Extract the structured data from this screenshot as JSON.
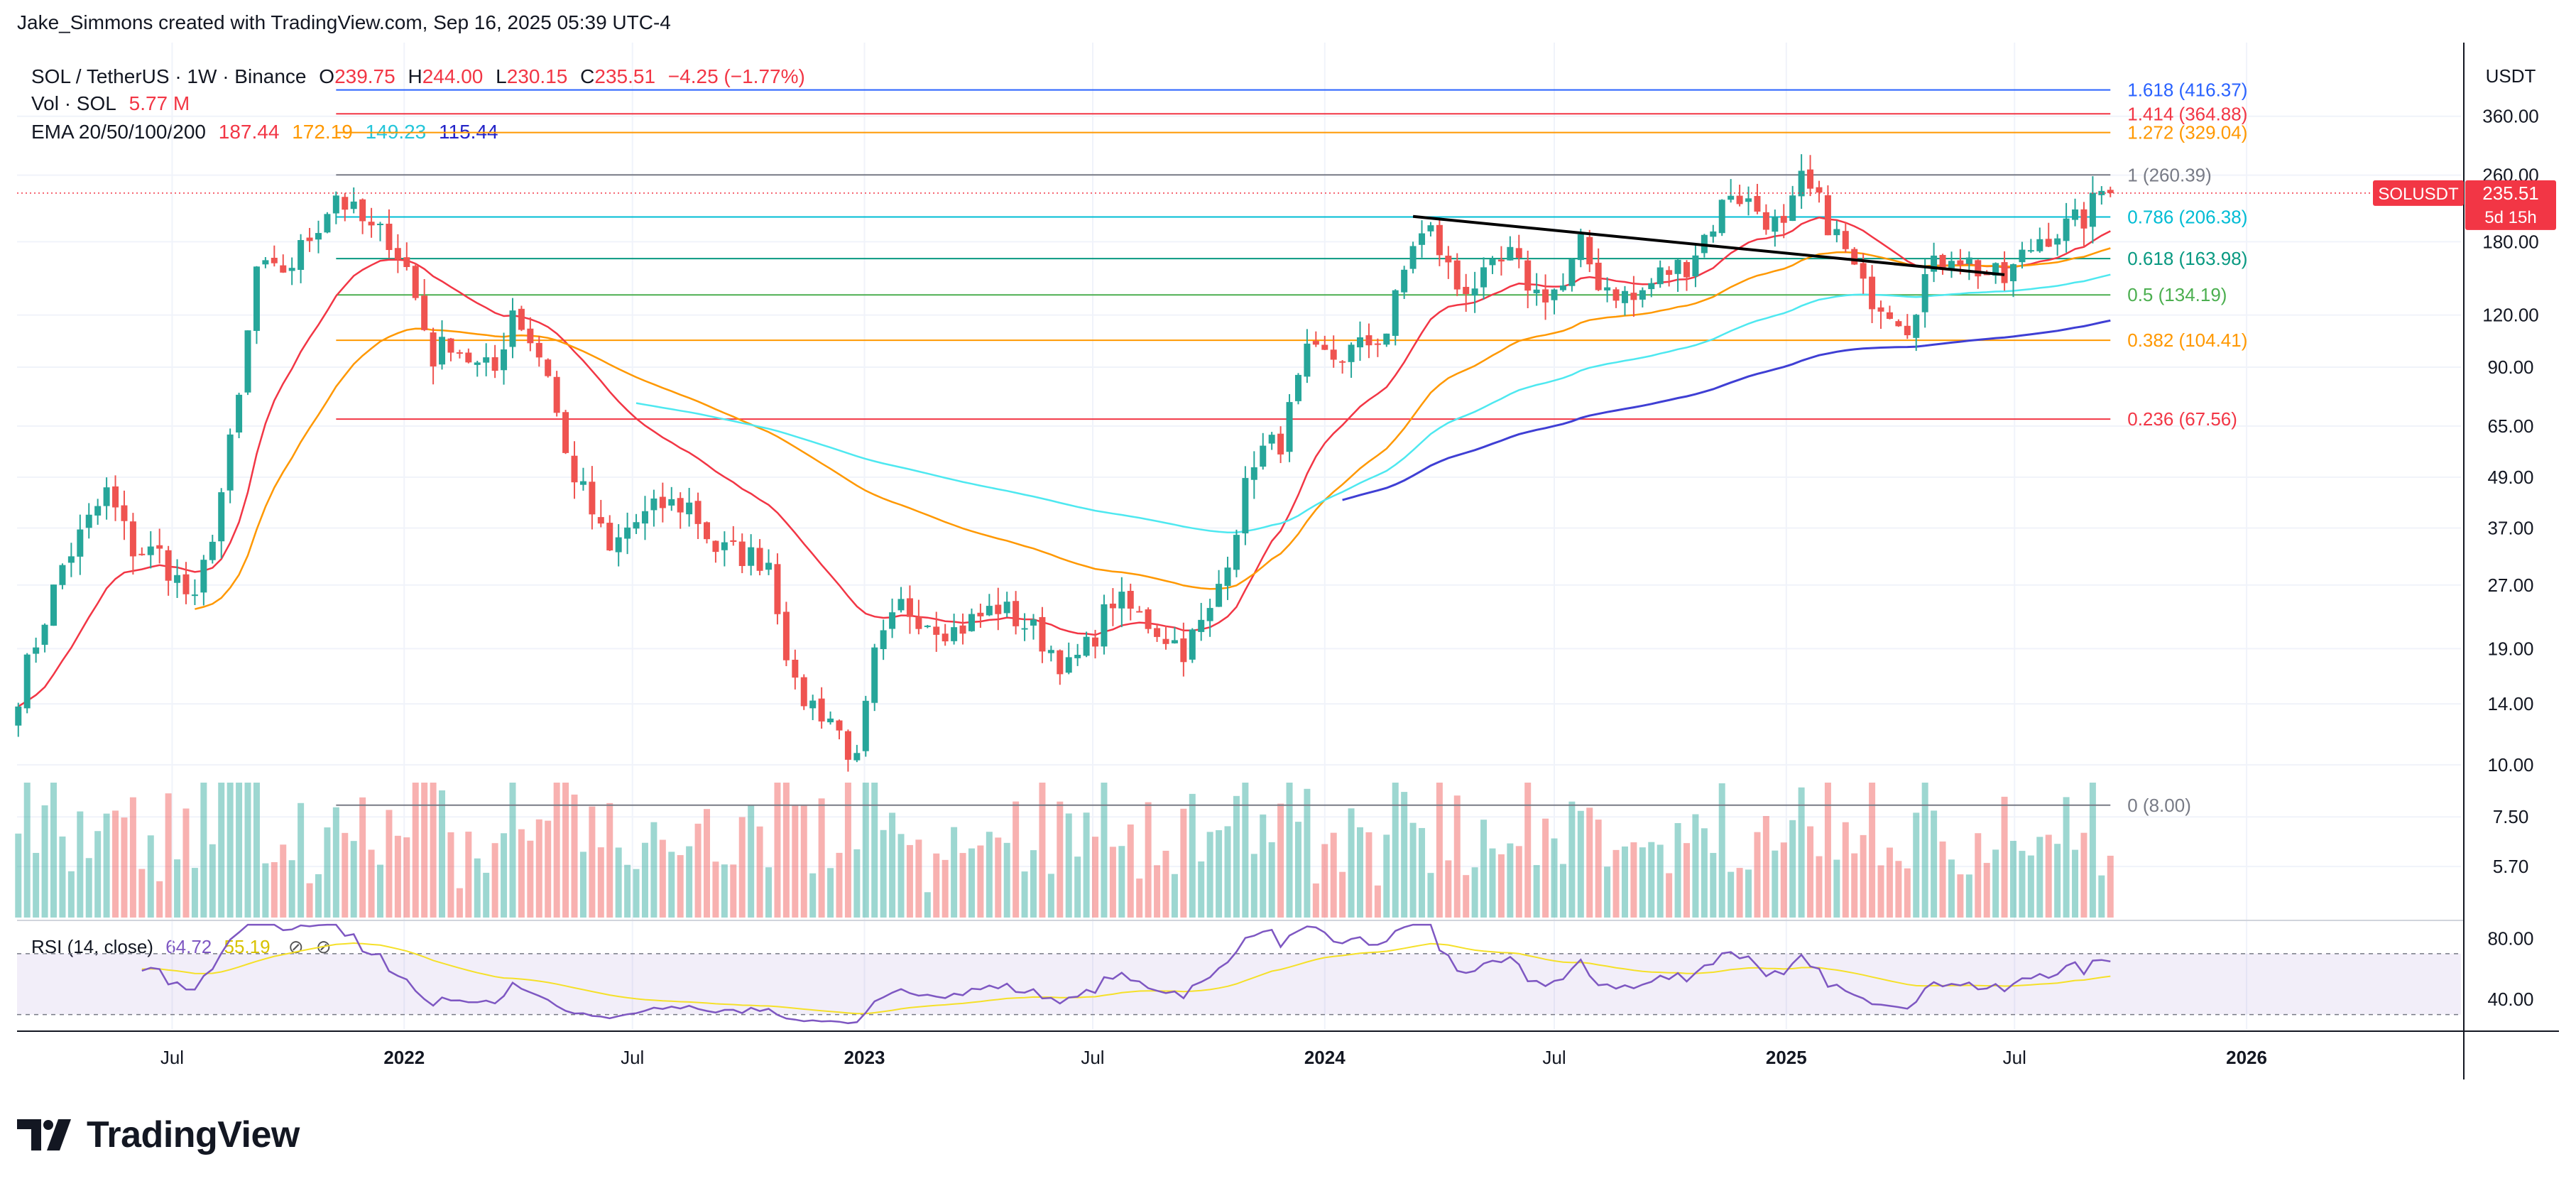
{
  "credit": "Jake_Simmons created with TradingView.com, Sep 16, 2025 05:39 UTC-4",
  "brand": {
    "name": "TradingView",
    "icon": "tradingview-logo-icon"
  },
  "legend": {
    "symbol": "SOL / TetherUS · 1W · Binance",
    "open_label": "O",
    "open": "239.75",
    "high_label": "H",
    "high": "244.00",
    "low_label": "L",
    "low": "230.15",
    "close_label": "C",
    "close": "235.51",
    "change": "−4.25 (−1.77%)",
    "volume_label": "Vol · SOL",
    "volume": "5.77 M",
    "ema_label": "EMA 20/50/100/200",
    "ema20": "187.44",
    "ema50": "172.19",
    "ema100": "149.23",
    "ema200": "115.44"
  },
  "rsi_legend": {
    "label": "RSI (14, close)",
    "value": "64.72",
    "ma": "55.19"
  },
  "price_tag": {
    "symbol": "SOLUSDT",
    "price": "235.51",
    "countdown": "5d 15h"
  },
  "axis_unit": "USDT",
  "colors": {
    "up": "#26a69a",
    "down": "#ef5350",
    "ema20": "#f23645",
    "ema50": "#ff9800",
    "ema100": "#4ee8f0",
    "ema200": "#3f3fd4",
    "rsi": "#7e57c2",
    "rsi_ma": "#f5e029",
    "trendline": "#000000"
  },
  "chart_data": {
    "type": "candlestick",
    "y_scale": "log",
    "ylim": [
      4.3,
      520
    ],
    "x_tick_labels": [
      "Jul",
      "2022",
      "Jul",
      "2023",
      "Jul",
      "2024",
      "Jul",
      "2025",
      "Jul",
      "2026"
    ],
    "x_tick_dates": [
      "2021-07-01",
      "2022-01-01",
      "2022-07-01",
      "2023-01-01",
      "2023-07-01",
      "2024-01-01",
      "2024-07-01",
      "2025-01-01",
      "2025-07-01",
      "2026-01-01"
    ],
    "x_range": [
      "2021-02-28",
      "2026-06-20"
    ],
    "y_tick_labels": [
      "360.00",
      "260.00",
      "180.00",
      "120.00",
      "90.00",
      "65.00",
      "49.00",
      "37.00",
      "27.00",
      "19.00",
      "14.00",
      "10.00",
      "7.50",
      "5.70"
    ],
    "y_ticks": [
      360,
      260,
      180,
      120,
      90,
      65,
      49,
      37,
      27,
      19,
      14,
      10,
      7.5,
      5.7
    ],
    "fibonacci": [
      {
        "level": "1.618",
        "value": 416.37,
        "label": "1.618 (416.37)",
        "color": "#2962ff"
      },
      {
        "level": "1.414",
        "value": 364.88,
        "label": "1.414 (364.88)",
        "color": "#f23645"
      },
      {
        "level": "1.272",
        "value": 329.04,
        "label": "1.272 (329.04)",
        "color": "#ff9800"
      },
      {
        "level": "1",
        "value": 260.39,
        "label": "1 (260.39)",
        "color": "#787b86"
      },
      {
        "level": "0.786",
        "value": 206.38,
        "label": "0.786 (206.38)",
        "color": "#00bcd4"
      },
      {
        "level": "0.618",
        "value": 163.98,
        "label": "0.618 (163.98)",
        "color": "#089981"
      },
      {
        "level": "0.5",
        "value": 134.19,
        "label": "0.5 (134.19)",
        "color": "#4caf50"
      },
      {
        "level": "0.382",
        "value": 104.41,
        "label": "0.382 (104.41)",
        "color": "#ff9800"
      },
      {
        "level": "0.236",
        "value": 67.56,
        "label": "0.236 (67.56)",
        "color": "#f23645"
      },
      {
        "level": "0",
        "value": 8.0,
        "label": "0 (8.00)",
        "color": "#787b86"
      }
    ],
    "trendline": [
      {
        "date": "2024-03-11",
        "value": 207
      },
      {
        "date": "2025-06-23",
        "value": 150
      }
    ],
    "close_anchors": [
      [
        "2021-03-01",
        15
      ],
      [
        "2021-04-05",
        30
      ],
      [
        "2021-05-10",
        45
      ],
      [
        "2021-05-31",
        33
      ],
      [
        "2021-06-21",
        32
      ],
      [
        "2021-07-19",
        24
      ],
      [
        "2021-08-09",
        45
      ],
      [
        "2021-08-23",
        75
      ],
      [
        "2021-09-06",
        155
      ],
      [
        "2021-09-20",
        150
      ],
      [
        "2021-10-04",
        160
      ],
      [
        "2021-10-25",
        200
      ],
      [
        "2021-11-08",
        235
      ],
      [
        "2021-11-22",
        210
      ],
      [
        "2021-12-06",
        190
      ],
      [
        "2021-12-20",
        185
      ],
      [
        "2022-01-03",
        155
      ],
      [
        "2022-01-24",
        95
      ],
      [
        "2022-02-07",
        105
      ],
      [
        "2022-02-28",
        90
      ],
      [
        "2022-03-14",
        88
      ],
      [
        "2022-03-28",
        125
      ],
      [
        "2022-04-11",
        105
      ],
      [
        "2022-04-25",
        88
      ],
      [
        "2022-05-09",
        55
      ],
      [
        "2022-05-23",
        45
      ],
      [
        "2022-06-13",
        32
      ],
      [
        "2022-06-27",
        37
      ],
      [
        "2022-07-25",
        42
      ],
      [
        "2022-08-15",
        42
      ],
      [
        "2022-09-05",
        33
      ],
      [
        "2022-10-17",
        31
      ],
      [
        "2022-11-07",
        15
      ],
      [
        "2022-12-05",
        13
      ],
      [
        "2022-12-26",
        10
      ],
      [
        "2023-01-09",
        18
      ],
      [
        "2023-01-30",
        24
      ],
      [
        "2023-02-27",
        22
      ],
      [
        "2023-03-13",
        21
      ],
      [
        "2023-04-17",
        24
      ],
      [
        "2023-05-15",
        21
      ],
      [
        "2023-06-12",
        17
      ],
      [
        "2023-06-26",
        19
      ],
      [
        "2023-07-17",
        25
      ],
      [
        "2023-08-14",
        22
      ],
      [
        "2023-09-11",
        19
      ],
      [
        "2023-10-02",
        23
      ],
      [
        "2023-10-23",
        38
      ],
      [
        "2023-11-06",
        55
      ],
      [
        "2023-11-27",
        60
      ],
      [
        "2023-12-18",
        95
      ],
      [
        "2024-01-08",
        95
      ],
      [
        "2024-01-29",
        100
      ],
      [
        "2024-02-19",
        110
      ],
      [
        "2024-03-11",
        180
      ],
      [
        "2024-03-25",
        190
      ],
      [
        "2024-04-15",
        140
      ],
      [
        "2024-05-06",
        145
      ],
      [
        "2024-05-27",
        165
      ],
      [
        "2024-06-17",
        135
      ],
      [
        "2024-07-08",
        140
      ],
      [
        "2024-07-22",
        175
      ],
      [
        "2024-08-05",
        145
      ],
      [
        "2024-09-02",
        130
      ],
      [
        "2024-09-23",
        150
      ],
      [
        "2024-10-14",
        160
      ],
      [
        "2024-11-04",
        200
      ],
      [
        "2024-11-18",
        240
      ],
      [
        "2024-12-09",
        215
      ],
      [
        "2024-12-30",
        190
      ],
      [
        "2025-01-13",
        250
      ],
      [
        "2025-01-27",
        220
      ],
      [
        "2025-02-17",
        170
      ],
      [
        "2025-03-03",
        138
      ],
      [
        "2025-03-24",
        126
      ],
      [
        "2025-04-07",
        115
      ],
      [
        "2025-04-21",
        148
      ],
      [
        "2025-05-12",
        172
      ],
      [
        "2025-06-02",
        155
      ],
      [
        "2025-06-23",
        145
      ],
      [
        "2025-07-07",
        165
      ],
      [
        "2025-07-21",
        185
      ],
      [
        "2025-08-11",
        195
      ],
      [
        "2025-08-25",
        205
      ],
      [
        "2025-09-08",
        238
      ],
      [
        "2025-09-15",
        235.51
      ]
    ],
    "rsi_scale": {
      "min": 20,
      "max": 90,
      "levels": [
        70,
        30
      ],
      "tick_labels": [
        "80.00",
        "40.00"
      ],
      "ticks": [
        80,
        40
      ]
    }
  }
}
